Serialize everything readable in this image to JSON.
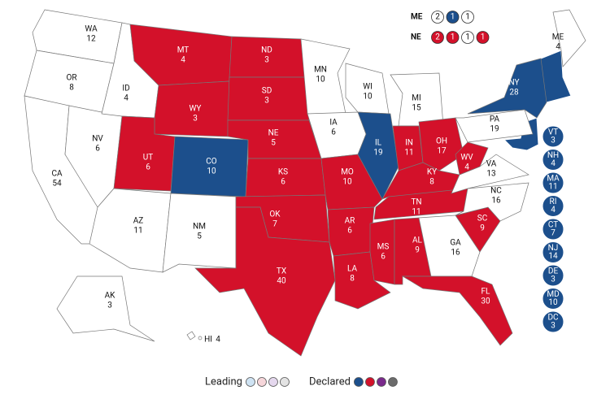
{
  "map": {
    "states": [
      {
        "abbr": "WA",
        "votes": 12,
        "color": "#ffffff"
      },
      {
        "abbr": "OR",
        "votes": 8,
        "color": "#ffffff"
      },
      {
        "abbr": "CA",
        "votes": 54,
        "color": "#ffffff"
      },
      {
        "abbr": "NV",
        "votes": 6,
        "color": "#ffffff"
      },
      {
        "abbr": "ID",
        "votes": 4,
        "color": "#ffffff"
      },
      {
        "abbr": "MT",
        "votes": 4,
        "color": "#d3112a"
      },
      {
        "abbr": "WY",
        "votes": 3,
        "color": "#d3112a"
      },
      {
        "abbr": "UT",
        "votes": 6,
        "color": "#d3112a"
      },
      {
        "abbr": "CO",
        "votes": 10,
        "color": "#1c4f8c"
      },
      {
        "abbr": "AZ",
        "votes": 11,
        "color": "#ffffff"
      },
      {
        "abbr": "NM",
        "votes": 5,
        "color": "#ffffff"
      },
      {
        "abbr": "ND",
        "votes": 3,
        "color": "#d3112a"
      },
      {
        "abbr": "SD",
        "votes": 3,
        "color": "#d3112a"
      },
      {
        "abbr": "NE",
        "votes": 5,
        "color": "#d3112a"
      },
      {
        "abbr": "KS",
        "votes": 6,
        "color": "#d3112a"
      },
      {
        "abbr": "OK",
        "votes": 7,
        "color": "#d3112a"
      },
      {
        "abbr": "TX",
        "votes": 40,
        "color": "#d3112a"
      },
      {
        "abbr": "MN",
        "votes": 10,
        "color": "#ffffff"
      },
      {
        "abbr": "IA",
        "votes": 6,
        "color": "#ffffff"
      },
      {
        "abbr": "MO",
        "votes": 10,
        "color": "#d3112a"
      },
      {
        "abbr": "AR",
        "votes": 6,
        "color": "#d3112a"
      },
      {
        "abbr": "LA",
        "votes": 8,
        "color": "#d3112a"
      },
      {
        "abbr": "WI",
        "votes": 10,
        "color": "#ffffff"
      },
      {
        "abbr": "IL",
        "votes": 19,
        "color": "#1c4f8c"
      },
      {
        "abbr": "MI",
        "votes": 15,
        "color": "#ffffff"
      },
      {
        "abbr": "IN",
        "votes": 11,
        "color": "#d3112a"
      },
      {
        "abbr": "OH",
        "votes": 17,
        "color": "#d3112a"
      },
      {
        "abbr": "KY",
        "votes": 8,
        "color": "#d3112a"
      },
      {
        "abbr": "TN",
        "votes": 11,
        "color": "#d3112a"
      },
      {
        "abbr": "MS",
        "votes": 6,
        "color": "#d3112a"
      },
      {
        "abbr": "AL",
        "votes": 9,
        "color": "#d3112a"
      },
      {
        "abbr": "GA",
        "votes": 16,
        "color": "#ffffff"
      },
      {
        "abbr": "FL",
        "votes": 30,
        "color": "#d3112a"
      },
      {
        "abbr": "SC",
        "votes": 9,
        "color": "#d3112a"
      },
      {
        "abbr": "NC",
        "votes": 16,
        "color": "#ffffff"
      },
      {
        "abbr": "VA",
        "votes": 13,
        "color": "#ffffff"
      },
      {
        "abbr": "WV",
        "votes": 4,
        "color": "#d3112a"
      },
      {
        "abbr": "PA",
        "votes": 19,
        "color": "#ffffff"
      },
      {
        "abbr": "NY",
        "votes": 28,
        "color": "#1c4f8c"
      },
      {
        "abbr": "ME",
        "votes": 4,
        "color": "#ffffff"
      },
      {
        "abbr": "AK",
        "votes": 3,
        "color": "#ffffff"
      },
      {
        "abbr": "HI",
        "votes": 4,
        "color": "#ffffff"
      }
    ],
    "small_states": [
      {
        "abbr": "VT",
        "votes": 3,
        "color": "#1c4f8c"
      },
      {
        "abbr": "NH",
        "votes": 4,
        "color": "#1c4f8c"
      },
      {
        "abbr": "MA",
        "votes": 11,
        "color": "#1c4f8c"
      },
      {
        "abbr": "RI",
        "votes": 4,
        "color": "#1c4f8c"
      },
      {
        "abbr": "CT",
        "votes": 7,
        "color": "#1c4f8c"
      },
      {
        "abbr": "NJ",
        "votes": 14,
        "color": "#1c4f8c"
      },
      {
        "abbr": "DE",
        "votes": 3,
        "color": "#1c4f8c"
      },
      {
        "abbr": "MD",
        "votes": 10,
        "color": "#1c4f8c"
      },
      {
        "abbr": "DC",
        "votes": 3,
        "color": "#1c4f8c"
      }
    ],
    "districts": [
      {
        "state": "ME",
        "seats": [
          {
            "votes": 2,
            "color": "#ffffff"
          },
          {
            "votes": 1,
            "color": "#1c4f8c"
          },
          {
            "votes": 1,
            "color": "#ffffff"
          }
        ]
      },
      {
        "state": "NE",
        "seats": [
          {
            "votes": 2,
            "color": "#d3112a"
          },
          {
            "votes": 1,
            "color": "#d3112a"
          },
          {
            "votes": 1,
            "color": "#ffffff"
          },
          {
            "votes": 1,
            "color": "#d3112a"
          }
        ]
      }
    ],
    "legend": [
      {
        "label": "Leading",
        "colors": [
          "#cfe3f3",
          "#f6d6da",
          "#e5d8ee",
          "#e3e3e3"
        ]
      },
      {
        "label": "Declared",
        "colors": [
          "#1c4f8c",
          "#d3112a",
          "#7a2a8c",
          "#6b6b6b"
        ]
      }
    ]
  }
}
